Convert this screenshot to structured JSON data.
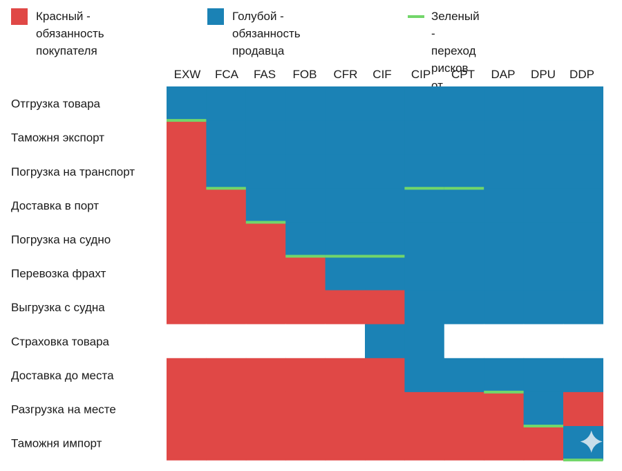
{
  "colors": {
    "buyer": "#e04846",
    "seller": "#1b82b5",
    "transfer": "#72d66a",
    "empty": "#ffffff"
  },
  "legend": [
    {
      "key": "buyer",
      "color": "#e04846",
      "text": "Красный - обязанность\nпокупателя"
    },
    {
      "key": "seller",
      "color": "#1b82b5",
      "text": "Голубой - обязанность\nпродавца"
    },
    {
      "key": "transfer",
      "color": "#72d66a",
      "text": "Зеленый - переход рисков\nот одного к другому"
    }
  ],
  "columns": [
    "EXW",
    "FCA",
    "FAS",
    "FOB",
    "CFR",
    "CIF",
    "CIP",
    "CPT",
    "DAP",
    "DPU",
    "DDP"
  ],
  "rows": [
    "Отгрузка товара",
    "Таможня экспорт",
    "Погрузка на транспорт",
    "Доставка в порт",
    "Погрузка на судно",
    "Перевозка фрахт",
    "Выгрузка с судна",
    "Страховка товара",
    "Доставка до места",
    "Разгрузка на месте",
    "Таможня импорт"
  ],
  "cells_legend": {
    "R": "buyer",
    "B": "seller",
    "W": "empty"
  },
  "cells": [
    "BBBBBBBBBBB",
    "RBBBBBBBBBB",
    "RBBBBBBBBBB",
    "RRBBBBBBBBB",
    "RRRBBBBBBBB",
    "RRRRBBBBBBB",
    "RRRRRRBBBBB",
    "WWWWWBBWWWW",
    "RRRRRRBBBBB",
    "RRRRRRRRRBR",
    "RRRRRRRRRRB"
  ],
  "risk_transfer_lines": [
    {
      "column": "EXW",
      "after_row": "Отгрузка товара"
    },
    {
      "column": "FCA",
      "after_row": "Погрузка на транспорт"
    },
    {
      "column": "FAS",
      "after_row": "Доставка в порт"
    },
    {
      "column": "FOB",
      "after_row": "Погрузка на судно"
    },
    {
      "column": "CFR",
      "after_row": "Погрузка на судно"
    },
    {
      "column": "CIF",
      "after_row": "Погрузка на судно"
    },
    {
      "column": "CIP",
      "after_row": "Погрузка на транспорт"
    },
    {
      "column": "CPT",
      "after_row": "Погрузка на транспорт"
    },
    {
      "column": "DAP",
      "after_row": "Доставка до места"
    },
    {
      "column": "DPU",
      "after_row": "Разгрузка на месте"
    },
    {
      "column": "DDP",
      "after_row": "Таможня импорт"
    }
  ],
  "watermark_icon": "sparkle-icon"
}
